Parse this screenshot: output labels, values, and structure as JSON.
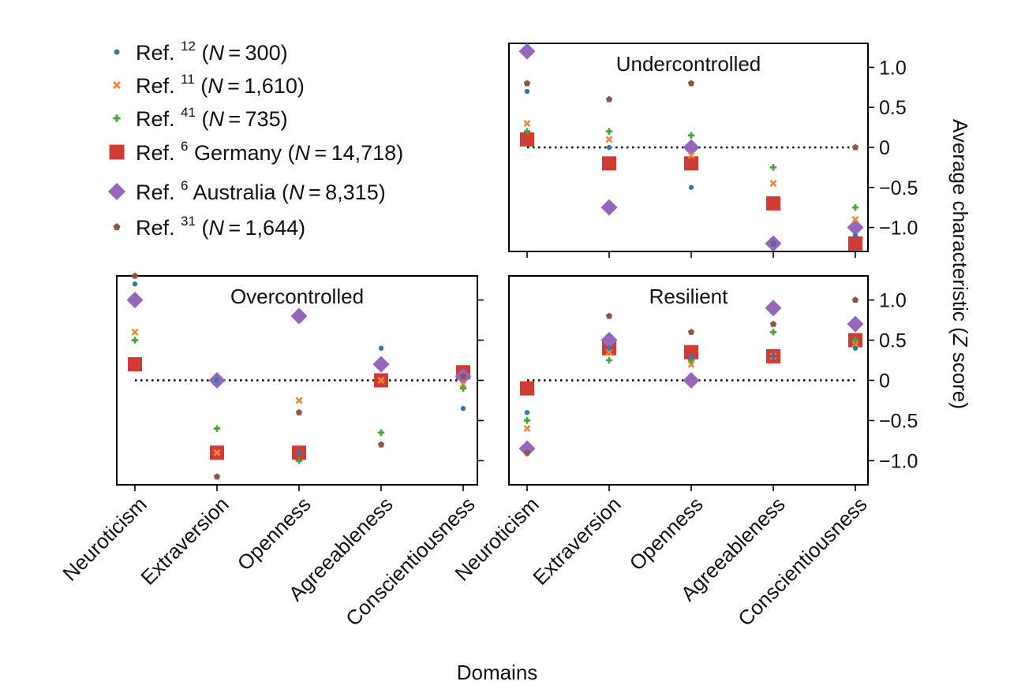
{
  "chart_data": {
    "type": "scatter",
    "categories": [
      "Neuroticism",
      "Extraversion",
      "Openness",
      "Agreeableness",
      "Conscientiousness"
    ],
    "xlabel": "Domains",
    "ylabel": "Average characteristic (Z score)",
    "ylabel_italic": "Z",
    "ylim": [
      -1.3,
      1.3
    ],
    "yticks": [
      1.0,
      0.5,
      0,
      -0.5,
      -1.0
    ],
    "ytick_labels": [
      "1.0",
      "0.5",
      "0",
      "−0.5",
      "−1.0"
    ],
    "grid": false,
    "legend_position": "top-left",
    "reference_line": 0,
    "legend": [
      {
        "key": "s12",
        "text": "Ref.",
        "sup": "12",
        "label": "",
        "n": "N = 300",
        "color": "#3a75b0",
        "marker": "dot"
      },
      {
        "key": "s11",
        "text": "Ref.",
        "sup": "11",
        "label": "",
        "n": "N = 1,610",
        "color": "#f0873a",
        "marker": "x"
      },
      {
        "key": "s41",
        "text": "Ref.",
        "sup": "41",
        "label": "",
        "n": "N = 735",
        "color": "#4aa33e",
        "marker": "plus"
      },
      {
        "key": "sde",
        "text": "Ref.",
        "sup": "6",
        "label": "Germany",
        "n": "N = 14,718",
        "color": "#d03b33",
        "marker": "square"
      },
      {
        "key": "sau",
        "text": "Ref.",
        "sup": "6",
        "label": "Australia",
        "n": "N = 8,315",
        "color": "#9467bd",
        "marker": "diamond"
      },
      {
        "key": "s31",
        "text": "Ref.",
        "sup": "31",
        "label": "",
        "n": "N = 1,644",
        "color": "#8c564b",
        "marker": "pentagon"
      }
    ],
    "panels": [
      {
        "id": "undercontrolled",
        "title": "Undercontrolled",
        "series": {
          "s12": [
            0.7,
            0.0,
            -0.5,
            -1.2,
            -1.1
          ],
          "s11": [
            0.3,
            0.1,
            -0.1,
            -0.45,
            -0.9
          ],
          "s41": [
            0.2,
            0.2,
            0.15,
            -0.25,
            -0.75
          ],
          "sde": [
            0.1,
            -0.2,
            -0.2,
            -0.7,
            -1.2
          ],
          "sau": [
            1.2,
            -0.75,
            0.0,
            -1.2,
            -1.0
          ],
          "s31": [
            0.8,
            0.6,
            0.8,
            -1.2,
            0.0
          ]
        }
      },
      {
        "id": "overcontrolled",
        "title": "Overcontrolled",
        "series": {
          "s12": [
            1.2,
            0.0,
            -0.9,
            0.4,
            -0.35
          ],
          "s11": [
            0.6,
            -0.9,
            -0.25,
            0.0,
            -0.05
          ],
          "s41": [
            0.5,
            -0.6,
            -1.0,
            -0.65,
            -0.1
          ],
          "sde": [
            0.2,
            -0.9,
            -0.9,
            0.0,
            0.1
          ],
          "sau": [
            1.0,
            0.0,
            0.8,
            0.2,
            0.05
          ],
          "s31": [
            1.3,
            -1.2,
            -0.4,
            -0.8,
            0.05
          ]
        }
      },
      {
        "id": "resilient",
        "title": "Resilient",
        "series": {
          "s12": [
            -0.4,
            0.4,
            0.3,
            0.3,
            0.4
          ],
          "s11": [
            -0.6,
            0.35,
            0.2,
            0.3,
            0.45
          ],
          "s41": [
            -0.5,
            0.25,
            0.25,
            0.6,
            0.5
          ],
          "sde": [
            -0.1,
            0.4,
            0.35,
            0.3,
            0.5
          ],
          "sau": [
            -0.85,
            0.5,
            0.0,
            0.9,
            0.7
          ],
          "s31": [
            -0.9,
            0.8,
            0.6,
            0.7,
            1.0
          ]
        }
      }
    ]
  }
}
